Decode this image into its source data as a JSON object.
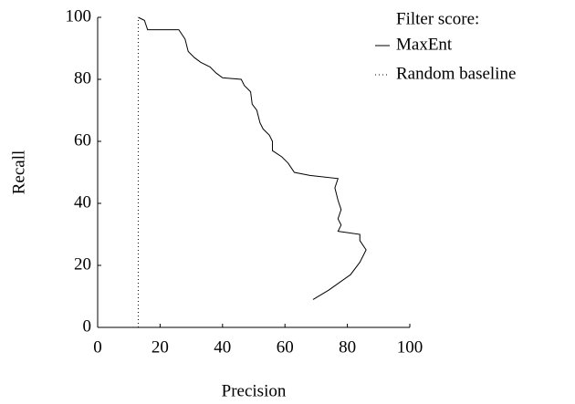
{
  "chart_data": {
    "type": "line",
    "xlabel": "Precision",
    "ylabel": "Recall",
    "legend_title": "Filter score:",
    "legend": "upper right",
    "xlim": [
      0,
      100
    ],
    "xticks": [
      0,
      20,
      40,
      60,
      80,
      100
    ],
    "ylim": [
      0,
      100
    ],
    "yticks": [
      0,
      20,
      40,
      60,
      80,
      100
    ],
    "series": [
      {
        "name": "MaxEnt",
        "color": "#000000",
        "linestyle": "solid",
        "x": [
          13,
          15,
          16,
          26,
          28,
          29,
          31,
          33,
          36,
          38,
          40,
          46,
          47,
          49,
          49.5,
          51,
          52,
          53,
          55,
          56,
          56,
          59,
          61,
          63,
          68,
          77,
          76,
          77,
          78,
          77,
          78,
          77,
          84,
          84,
          86,
          84,
          81,
          74,
          69
        ],
        "values": [
          100,
          99,
          96,
          96,
          93,
          89,
          87,
          85.5,
          84,
          82,
          80.5,
          80,
          78,
          76,
          72,
          70,
          66,
          64,
          62,
          60,
          57,
          55,
          53,
          50,
          49,
          48,
          45,
          41,
          38,
          35,
          33,
          31,
          30,
          28,
          25,
          21,
          17,
          12,
          9
        ]
      },
      {
        "name": "Random baseline",
        "color": "#000000",
        "linestyle": "dotted",
        "x": [
          13,
          13
        ],
        "values": [
          0,
          100
        ]
      }
    ]
  }
}
